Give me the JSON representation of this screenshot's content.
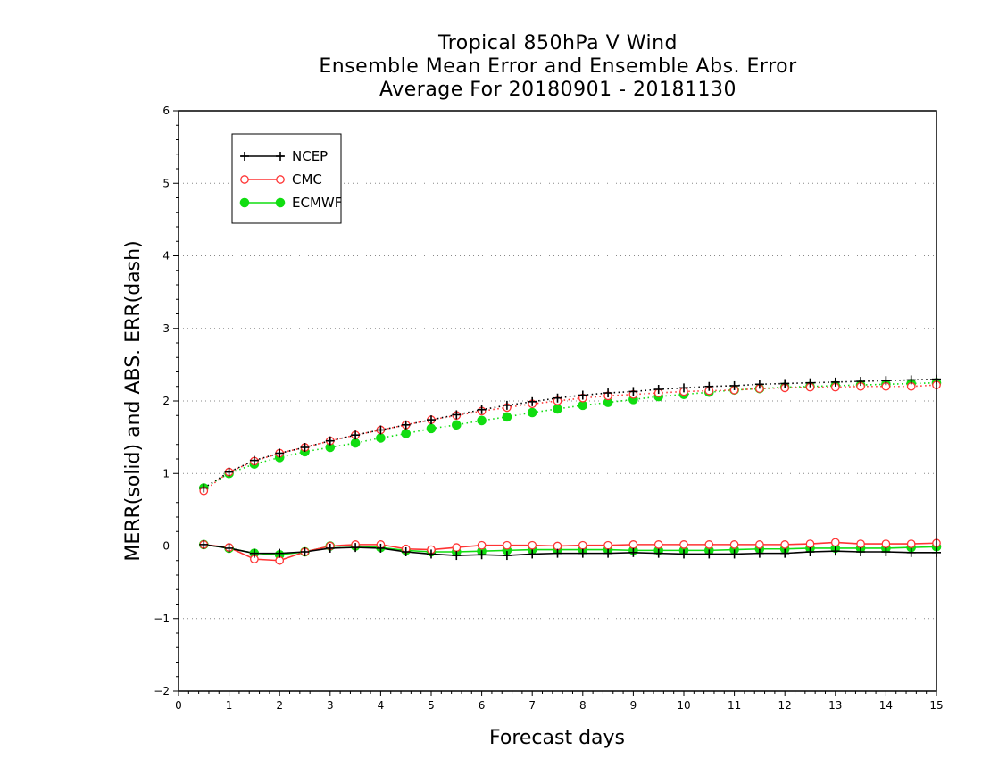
{
  "chart_data": {
    "type": "line",
    "title_lines": [
      "Tropical 850hPa V Wind",
      "Ensemble Mean Error and Ensemble Abs. Error",
      "Average For 20180901 - 20181130"
    ],
    "xlabel": "Forecast days",
    "ylabel": "MERR(solid) and ABS. ERR(dash)",
    "xlim": [
      0,
      15
    ],
    "ylim": [
      -2,
      6
    ],
    "x_ticks": [
      "0",
      "1",
      "2",
      "3",
      "4",
      "5",
      "6",
      "7",
      "8",
      "9",
      "10",
      "11",
      "12",
      "13",
      "14",
      "15"
    ],
    "y_ticks": [
      "-2",
      "-1",
      "0",
      "1",
      "2",
      "3",
      "4",
      "5",
      "6"
    ],
    "grid": "horizontal dotted",
    "legend_position": "top-left",
    "x": [
      0.5,
      1,
      1.5,
      2,
      2.5,
      3,
      3.5,
      4,
      4.5,
      5,
      5.5,
      6,
      6.5,
      7,
      7.5,
      8,
      8.5,
      9,
      9.5,
      10,
      10.5,
      11,
      11.5,
      12,
      12.5,
      13,
      13.5,
      14,
      14.5,
      15
    ],
    "series": [
      {
        "name": "NCEP",
        "color": "#000000",
        "marker": "plus",
        "merr": [
          0.02,
          -0.03,
          -0.1,
          -0.1,
          -0.08,
          -0.03,
          -0.02,
          -0.03,
          -0.08,
          -0.11,
          -0.13,
          -0.12,
          -0.13,
          -0.11,
          -0.1,
          -0.1,
          -0.1,
          -0.09,
          -0.1,
          -0.11,
          -0.11,
          -0.11,
          -0.1,
          -0.1,
          -0.08,
          -0.07,
          -0.08,
          -0.08,
          -0.09,
          -0.09
        ],
        "abserr": [
          0.8,
          1.02,
          1.18,
          1.28,
          1.36,
          1.45,
          1.53,
          1.6,
          1.67,
          1.74,
          1.81,
          1.88,
          1.94,
          1.99,
          2.04,
          2.08,
          2.11,
          2.13,
          2.16,
          2.18,
          2.2,
          2.21,
          2.23,
          2.24,
          2.25,
          2.26,
          2.27,
          2.28,
          2.29,
          2.3
        ]
      },
      {
        "name": "CMC",
        "color": "#ff3333",
        "marker": "open-circle",
        "merr": [
          0.02,
          -0.02,
          -0.18,
          -0.2,
          -0.08,
          0.0,
          0.02,
          0.02,
          -0.04,
          -0.05,
          -0.02,
          0.01,
          0.01,
          0.01,
          0.0,
          0.01,
          0.01,
          0.02,
          0.02,
          0.02,
          0.02,
          0.02,
          0.02,
          0.02,
          0.03,
          0.05,
          0.03,
          0.03,
          0.03,
          0.04
        ],
        "abserr": [
          0.76,
          1.02,
          1.17,
          1.28,
          1.36,
          1.45,
          1.53,
          1.6,
          1.67,
          1.74,
          1.8,
          1.86,
          1.91,
          1.96,
          2.0,
          2.04,
          2.07,
          2.09,
          2.11,
          2.13,
          2.14,
          2.15,
          2.17,
          2.18,
          2.19,
          2.19,
          2.2,
          2.2,
          2.2,
          2.22
        ]
      },
      {
        "name": "ECMWF",
        "color": "#11dd11",
        "marker": "filled-circle",
        "merr": [
          0.02,
          -0.03,
          -0.1,
          -0.12,
          -0.08,
          0.0,
          0.0,
          -0.02,
          -0.06,
          -0.08,
          -0.08,
          -0.07,
          -0.06,
          -0.05,
          -0.05,
          -0.05,
          -0.05,
          -0.06,
          -0.06,
          -0.06,
          -0.06,
          -0.05,
          -0.04,
          -0.04,
          -0.03,
          -0.03,
          -0.03,
          -0.03,
          -0.02,
          -0.01
        ],
        "abserr": [
          0.8,
          1.0,
          1.13,
          1.22,
          1.3,
          1.36,
          1.42,
          1.49,
          1.55,
          1.62,
          1.67,
          1.73,
          1.78,
          1.84,
          1.89,
          1.94,
          1.98,
          2.02,
          2.06,
          2.09,
          2.12,
          2.15,
          2.17,
          2.19,
          2.2,
          2.21,
          2.22,
          2.23,
          2.24,
          2.25
        ]
      }
    ]
  }
}
